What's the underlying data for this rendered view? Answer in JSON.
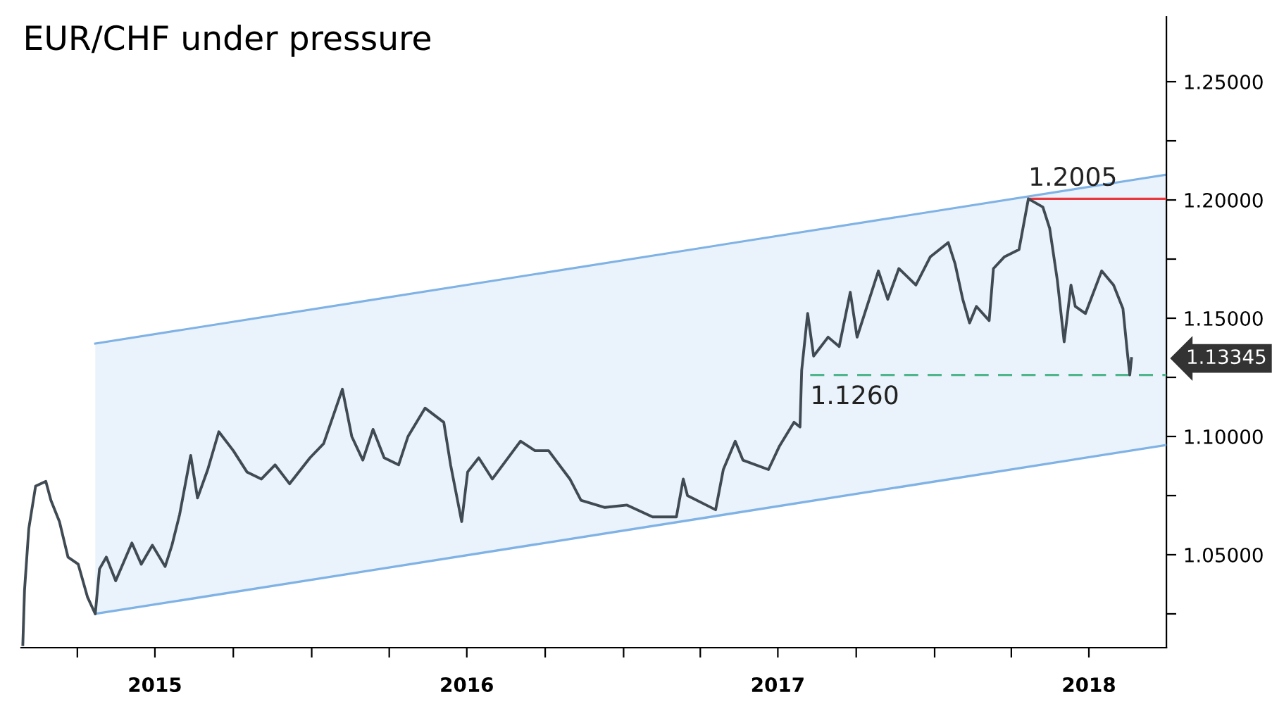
{
  "chart_data": {
    "type": "line",
    "title": "EUR/CHF under pressure",
    "xlim": [
      "2015-01-25",
      "2018-09-30"
    ],
    "xticks": [
      {
        "value": "2015-04-01",
        "label": null
      },
      {
        "value": "2015-07-01",
        "label": "2015"
      },
      {
        "value": "2015-10-01",
        "label": null
      },
      {
        "value": "2016-01-01",
        "label": null
      },
      {
        "value": "2016-04-01",
        "label": null
      },
      {
        "value": "2016-07-01",
        "label": "2016"
      },
      {
        "value": "2016-10-01",
        "label": null
      },
      {
        "value": "2017-01-01",
        "label": null
      },
      {
        "value": "2017-04-01",
        "label": null
      },
      {
        "value": "2017-07-01",
        "label": "2017"
      },
      {
        "value": "2017-10-01",
        "label": null
      },
      {
        "value": "2018-01-01",
        "label": null
      },
      {
        "value": "2018-04-01",
        "label": null
      },
      {
        "value": "2018-07-01",
        "label": "2018"
      }
    ],
    "ylim": [
      1.0107,
      1.2774
    ],
    "yticks": [
      {
        "value": 1.025,
        "label": null
      },
      {
        "value": 1.05,
        "label": "1.05000"
      },
      {
        "value": 1.075,
        "label": null
      },
      {
        "value": 1.1,
        "label": "1.10000"
      },
      {
        "value": 1.125,
        "label": null
      },
      {
        "value": 1.15,
        "label": "1.15000"
      },
      {
        "value": 1.175,
        "label": null
      },
      {
        "value": 1.2,
        "label": "1.20000"
      },
      {
        "value": 1.225,
        "label": null
      },
      {
        "value": 1.25,
        "label": "1.25000"
      }
    ],
    "grid": false,
    "legend": false,
    "series": [
      {
        "type": "line",
        "color": "#7fb2e5",
        "x": [
          "2015-04-22",
          "2018-09-30"
        ],
        "values": [
          1.025,
          1.0964
        ]
      },
      {
        "type": "area",
        "color": "#7fb2e5",
        "x": [
          "2015-04-22",
          "2018-09-30"
        ],
        "values": [
          1.1393,
          1.2107
        ]
      },
      {
        "type": "line",
        "color": "#e8383d",
        "x": [
          "2018-04-21",
          "2018-09-30"
        ],
        "values": [
          1.2005,
          1.2005
        ]
      },
      {
        "type": "line",
        "color": "#4fb58c",
        "line_style": "dashed",
        "x": [
          "2017-08-08",
          "2018-09-30"
        ],
        "values": [
          1.126,
          1.126
        ]
      },
      {
        "color": "#404a52",
        "x": [
          "2015-01-27",
          "2015-01-29",
          "2015-02-03",
          "2015-02-11",
          "2015-02-23",
          "2015-03-01",
          "2015-03-11",
          "2015-03-21",
          "2015-04-02",
          "2015-04-13",
          "2015-04-22",
          "2015-04-27",
          "2015-05-05",
          "2015-05-16",
          "2015-06-04",
          "2015-06-15",
          "2015-06-28",
          "2015-07-13",
          "2015-07-21",
          "2015-07-30",
          "2015-08-12",
          "2015-08-20",
          "2015-09-01",
          "2015-09-14",
          "2015-10-01",
          "2015-10-17",
          "2015-11-03",
          "2015-11-19",
          "2015-12-06",
          "2015-12-30",
          "2016-01-15",
          "2016-02-06",
          "2016-02-17",
          "2016-03-01",
          "2016-03-13",
          "2016-03-26",
          "2016-04-12",
          "2016-04-23",
          "2016-05-13",
          "2016-06-04",
          "2016-06-12",
          "2016-06-25",
          "2016-07-02",
          "2016-07-15",
          "2016-07-31",
          "2016-09-02",
          "2016-09-19",
          "2016-10-05",
          "2016-10-30",
          "2016-11-12",
          "2016-12-10",
          "2017-01-05",
          "2017-02-04",
          "2017-03-04",
          "2017-03-12",
          "2017-03-17",
          "2017-04-19",
          "2017-04-28",
          "2017-05-12",
          "2017-05-21",
          "2017-06-20",
          "2017-07-03",
          "2017-07-20",
          "2017-07-27",
          "2017-07-29",
          "2017-08-05",
          "2017-08-12",
          "2017-08-29",
          "2017-09-11",
          "2017-09-24",
          "2017-10-02",
          "2017-10-27",
          "2017-11-07",
          "2017-11-20",
          "2017-12-10",
          "2017-12-27",
          "2018-01-17",
          "2018-01-25",
          "2018-02-03",
          "2018-02-11",
          "2018-02-19",
          "2018-03-06",
          "2018-03-11",
          "2018-03-24",
          "2018-04-10",
          "2018-04-21",
          "2018-05-08",
          "2018-05-16",
          "2018-05-25",
          "2018-06-02",
          "2018-06-10",
          "2018-06-15",
          "2018-06-27",
          "2018-07-16",
          "2018-07-30",
          "2018-08-10",
          "2018-08-15",
          "2018-08-18",
          "2018-08-20"
        ],
        "values": [
          1.012,
          1.035,
          1.061,
          1.079,
          1.081,
          1.073,
          1.064,
          1.049,
          1.046,
          1.032,
          1.025,
          1.044,
          1.049,
          1.039,
          1.055,
          1.046,
          1.054,
          1.045,
          1.054,
          1.067,
          1.092,
          1.074,
          1.086,
          1.102,
          1.094,
          1.085,
          1.082,
          1.088,
          1.08,
          1.091,
          1.097,
          1.12,
          1.1,
          1.09,
          1.103,
          1.091,
          1.088,
          1.1,
          1.112,
          1.106,
          1.088,
          1.064,
          1.085,
          1.091,
          1.082,
          1.098,
          1.094,
          1.094,
          1.082,
          1.073,
          1.07,
          1.071,
          1.066,
          1.066,
          1.082,
          1.075,
          1.069,
          1.086,
          1.098,
          1.09,
          1.086,
          1.096,
          1.106,
          1.104,
          1.128,
          1.152,
          1.134,
          1.142,
          1.138,
          1.161,
          1.142,
          1.17,
          1.158,
          1.171,
          1.164,
          1.176,
          1.182,
          1.173,
          1.158,
          1.148,
          1.155,
          1.149,
          1.171,
          1.176,
          1.179,
          1.2005,
          1.197,
          1.188,
          1.166,
          1.14,
          1.164,
          1.155,
          1.152,
          1.17,
          1.164,
          1.154,
          1.136,
          1.126,
          1.133
        ]
      }
    ],
    "annotations": [
      {
        "text": "1.2005",
        "x": "2018-04-21",
        "y": 1.2005
      },
      {
        "text": "1.1260",
        "x": "2017-08-08",
        "y": 1.126
      },
      "1.13345"
    ]
  }
}
